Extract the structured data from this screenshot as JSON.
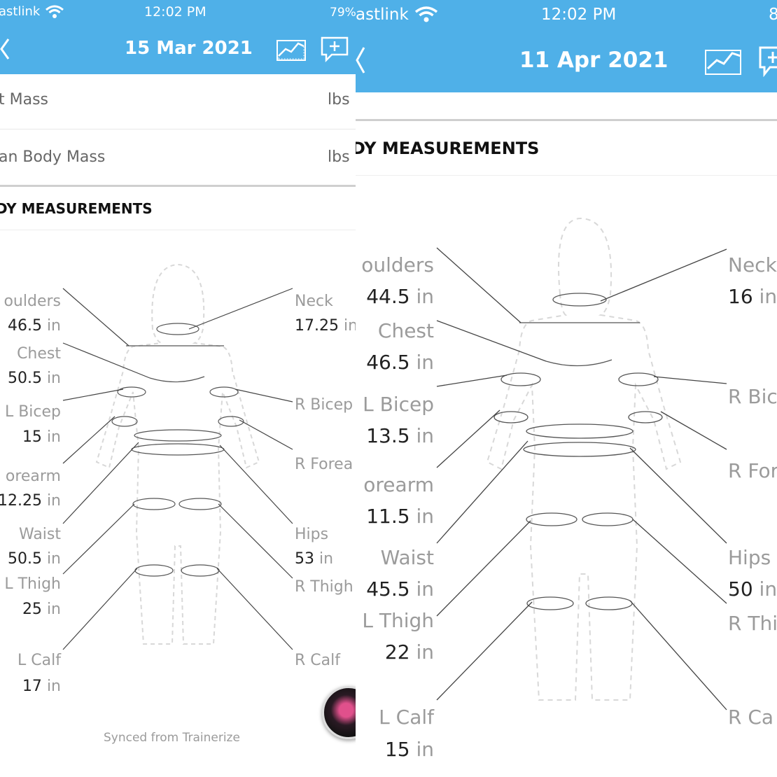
{
  "left": {
    "status": {
      "carrier": "astlink",
      "time": "12:02 PM",
      "battery": "79%"
    },
    "header": {
      "date": "15 Mar 2021"
    },
    "rows": [
      {
        "label": "t Mass",
        "unit": "lbs"
      },
      {
        "label": "an Body Mass",
        "unit": "lbs"
      }
    ],
    "section_title": "DY MEASUREMENTS",
    "measures": {
      "shoulders": {
        "label": "oulders",
        "value": "46.5",
        "unit": "in"
      },
      "chest": {
        "label": "Chest",
        "value": "50.5",
        "unit": "in"
      },
      "lbicep": {
        "label": "L Bicep",
        "value": "15",
        "unit": "in"
      },
      "forearm": {
        "label": "orearm",
        "value": "12.25",
        "unit": "in"
      },
      "waist": {
        "label": "Waist",
        "value": "50.5",
        "unit": "in"
      },
      "lthigh": {
        "label": "L Thigh",
        "value": "25",
        "unit": "in"
      },
      "lcalf": {
        "label": "L Calf",
        "value": "17",
        "unit": "in"
      },
      "neck": {
        "label": "Neck",
        "value": "17.25",
        "unit": "in"
      },
      "rbicep": {
        "label": "R Bicep"
      },
      "rforearm": {
        "label": "R Forea"
      },
      "hips": {
        "label": "Hips",
        "value": "53",
        "unit": "in"
      },
      "rthigh": {
        "label": "R Thigh"
      },
      "rcalf": {
        "label": "R Calf"
      }
    },
    "footer": "Synced from Trainerize"
  },
  "right": {
    "status": {
      "carrier": "astlink",
      "time": "12:02 PM",
      "battery": "8"
    },
    "header": {
      "date": "11 Apr 2021"
    },
    "section_title": "DY MEASUREMENTS",
    "measures": {
      "shoulders": {
        "label": "oulders",
        "value": "44.5",
        "unit": "in"
      },
      "chest": {
        "label": "Chest",
        "value": "46.5",
        "unit": "in"
      },
      "lbicep": {
        "label": "L Bicep",
        "value": "13.5",
        "unit": "in"
      },
      "forearm": {
        "label": "orearm",
        "value": "11.5",
        "unit": "in"
      },
      "waist": {
        "label": "Waist",
        "value": "45.5",
        "unit": "in"
      },
      "lthigh": {
        "label": "L Thigh",
        "value": "22",
        "unit": "in"
      },
      "lcalf": {
        "label": "L Calf",
        "value": "15",
        "unit": "in"
      },
      "neck": {
        "label": "Neck",
        "value": "16",
        "unit": "in"
      },
      "rbicep": {
        "label": "R Bic"
      },
      "rforearm": {
        "label": "R For"
      },
      "hips": {
        "label": "Hips",
        "value": "50",
        "unit": "in"
      },
      "rthigh": {
        "label": "R Thi"
      },
      "rcalf": {
        "label": "R Ca"
      }
    }
  },
  "colors": {
    "header_blue": "#4fb0e8",
    "label_gray": "#9b9b9b",
    "value_dark": "#222222"
  },
  "icons": [
    "back-chevron-icon",
    "wifi-icon",
    "chart-icon",
    "add-comment-icon",
    "watermark-badge"
  ]
}
